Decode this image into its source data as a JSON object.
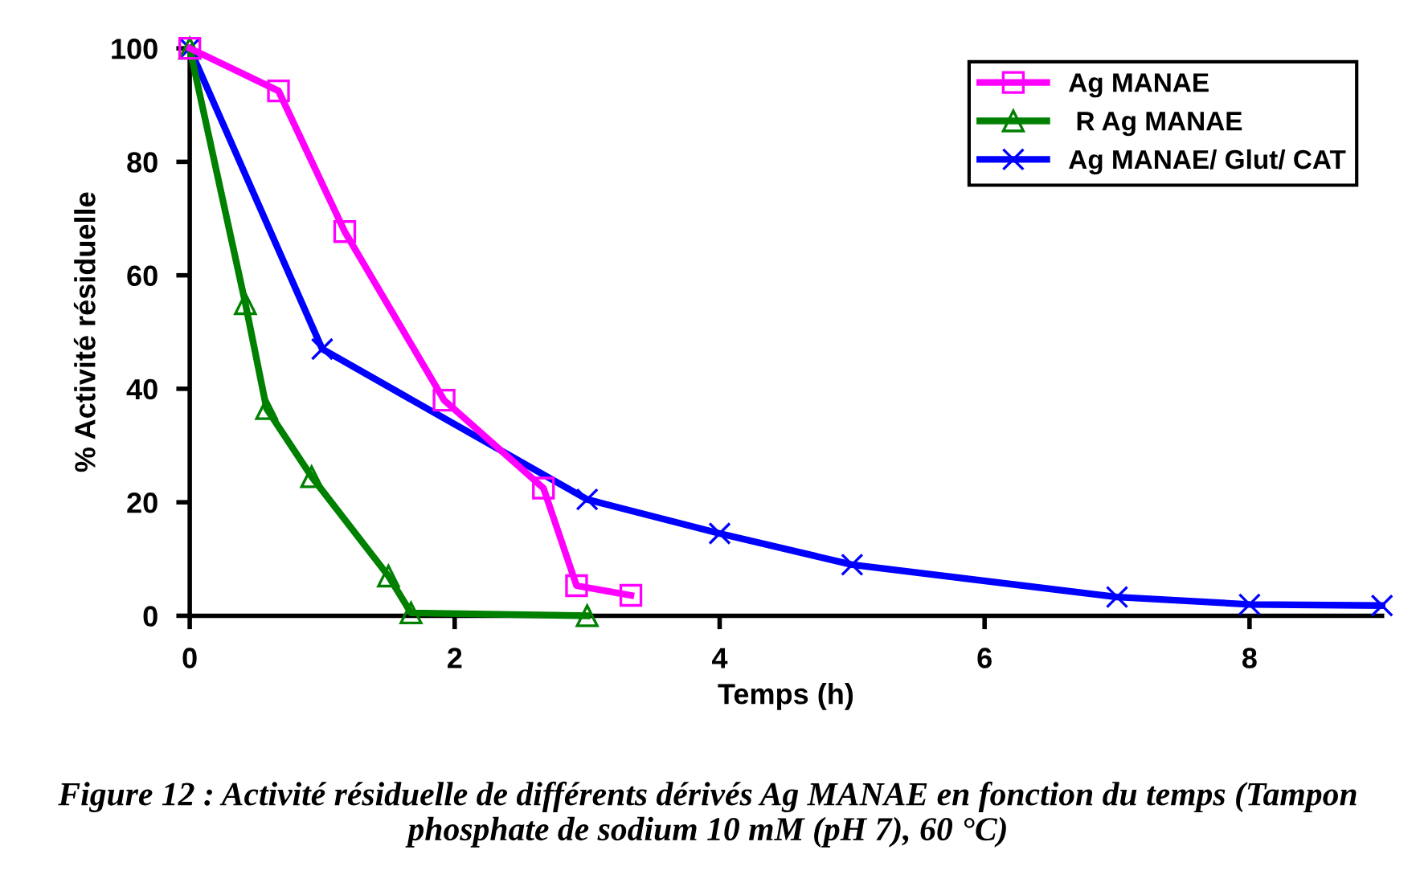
{
  "chart_data": {
    "type": "line",
    "xlabel": "Temps (h)",
    "ylabel": "% Activité résiduelle",
    "xlim": [
      0,
      9
    ],
    "xticks": [
      0,
      2,
      4,
      6,
      8
    ],
    "ylim": [
      0,
      100
    ],
    "yticks": [
      0,
      20,
      40,
      60,
      80,
      100
    ],
    "grid": false,
    "legend": "top right",
    "line_style": "solid",
    "series": [
      {
        "name": "Ag MANAE",
        "color": "#ff00ff",
        "marker": "square",
        "x": [
          0,
          0.67,
          1.17,
          1.92,
          2.67,
          2.92,
          3.33
        ],
        "values": [
          100,
          92.5,
          67.7,
          38,
          22.5,
          5.3,
          3.6
        ]
      },
      {
        "name": " R Ag MANAE",
        "color": "#008000",
        "marker": "triangle",
        "x": [
          0,
          0.42,
          0.58,
          0.92,
          1.5,
          1.67,
          3
        ],
        "values": [
          100,
          55,
          36.5,
          24.5,
          7,
          0.5,
          0
        ]
      },
      {
        "name": "Ag MANAE/ Glut/ CAT",
        "color": "#0000ff",
        "marker": "cross",
        "x": [
          0,
          1,
          3,
          4,
          5,
          7,
          8,
          9
        ],
        "values": [
          100,
          47,
          20.5,
          14.5,
          9,
          3.3,
          2,
          1.8
        ]
      }
    ],
    "annotations": [
      "Figure 12 : Activité résiduelle de différents dérivés Ag MANAE en fonction du temps (Tampon phosphate de sodium 10 mM (pH 7), 60 °C)"
    ]
  }
}
